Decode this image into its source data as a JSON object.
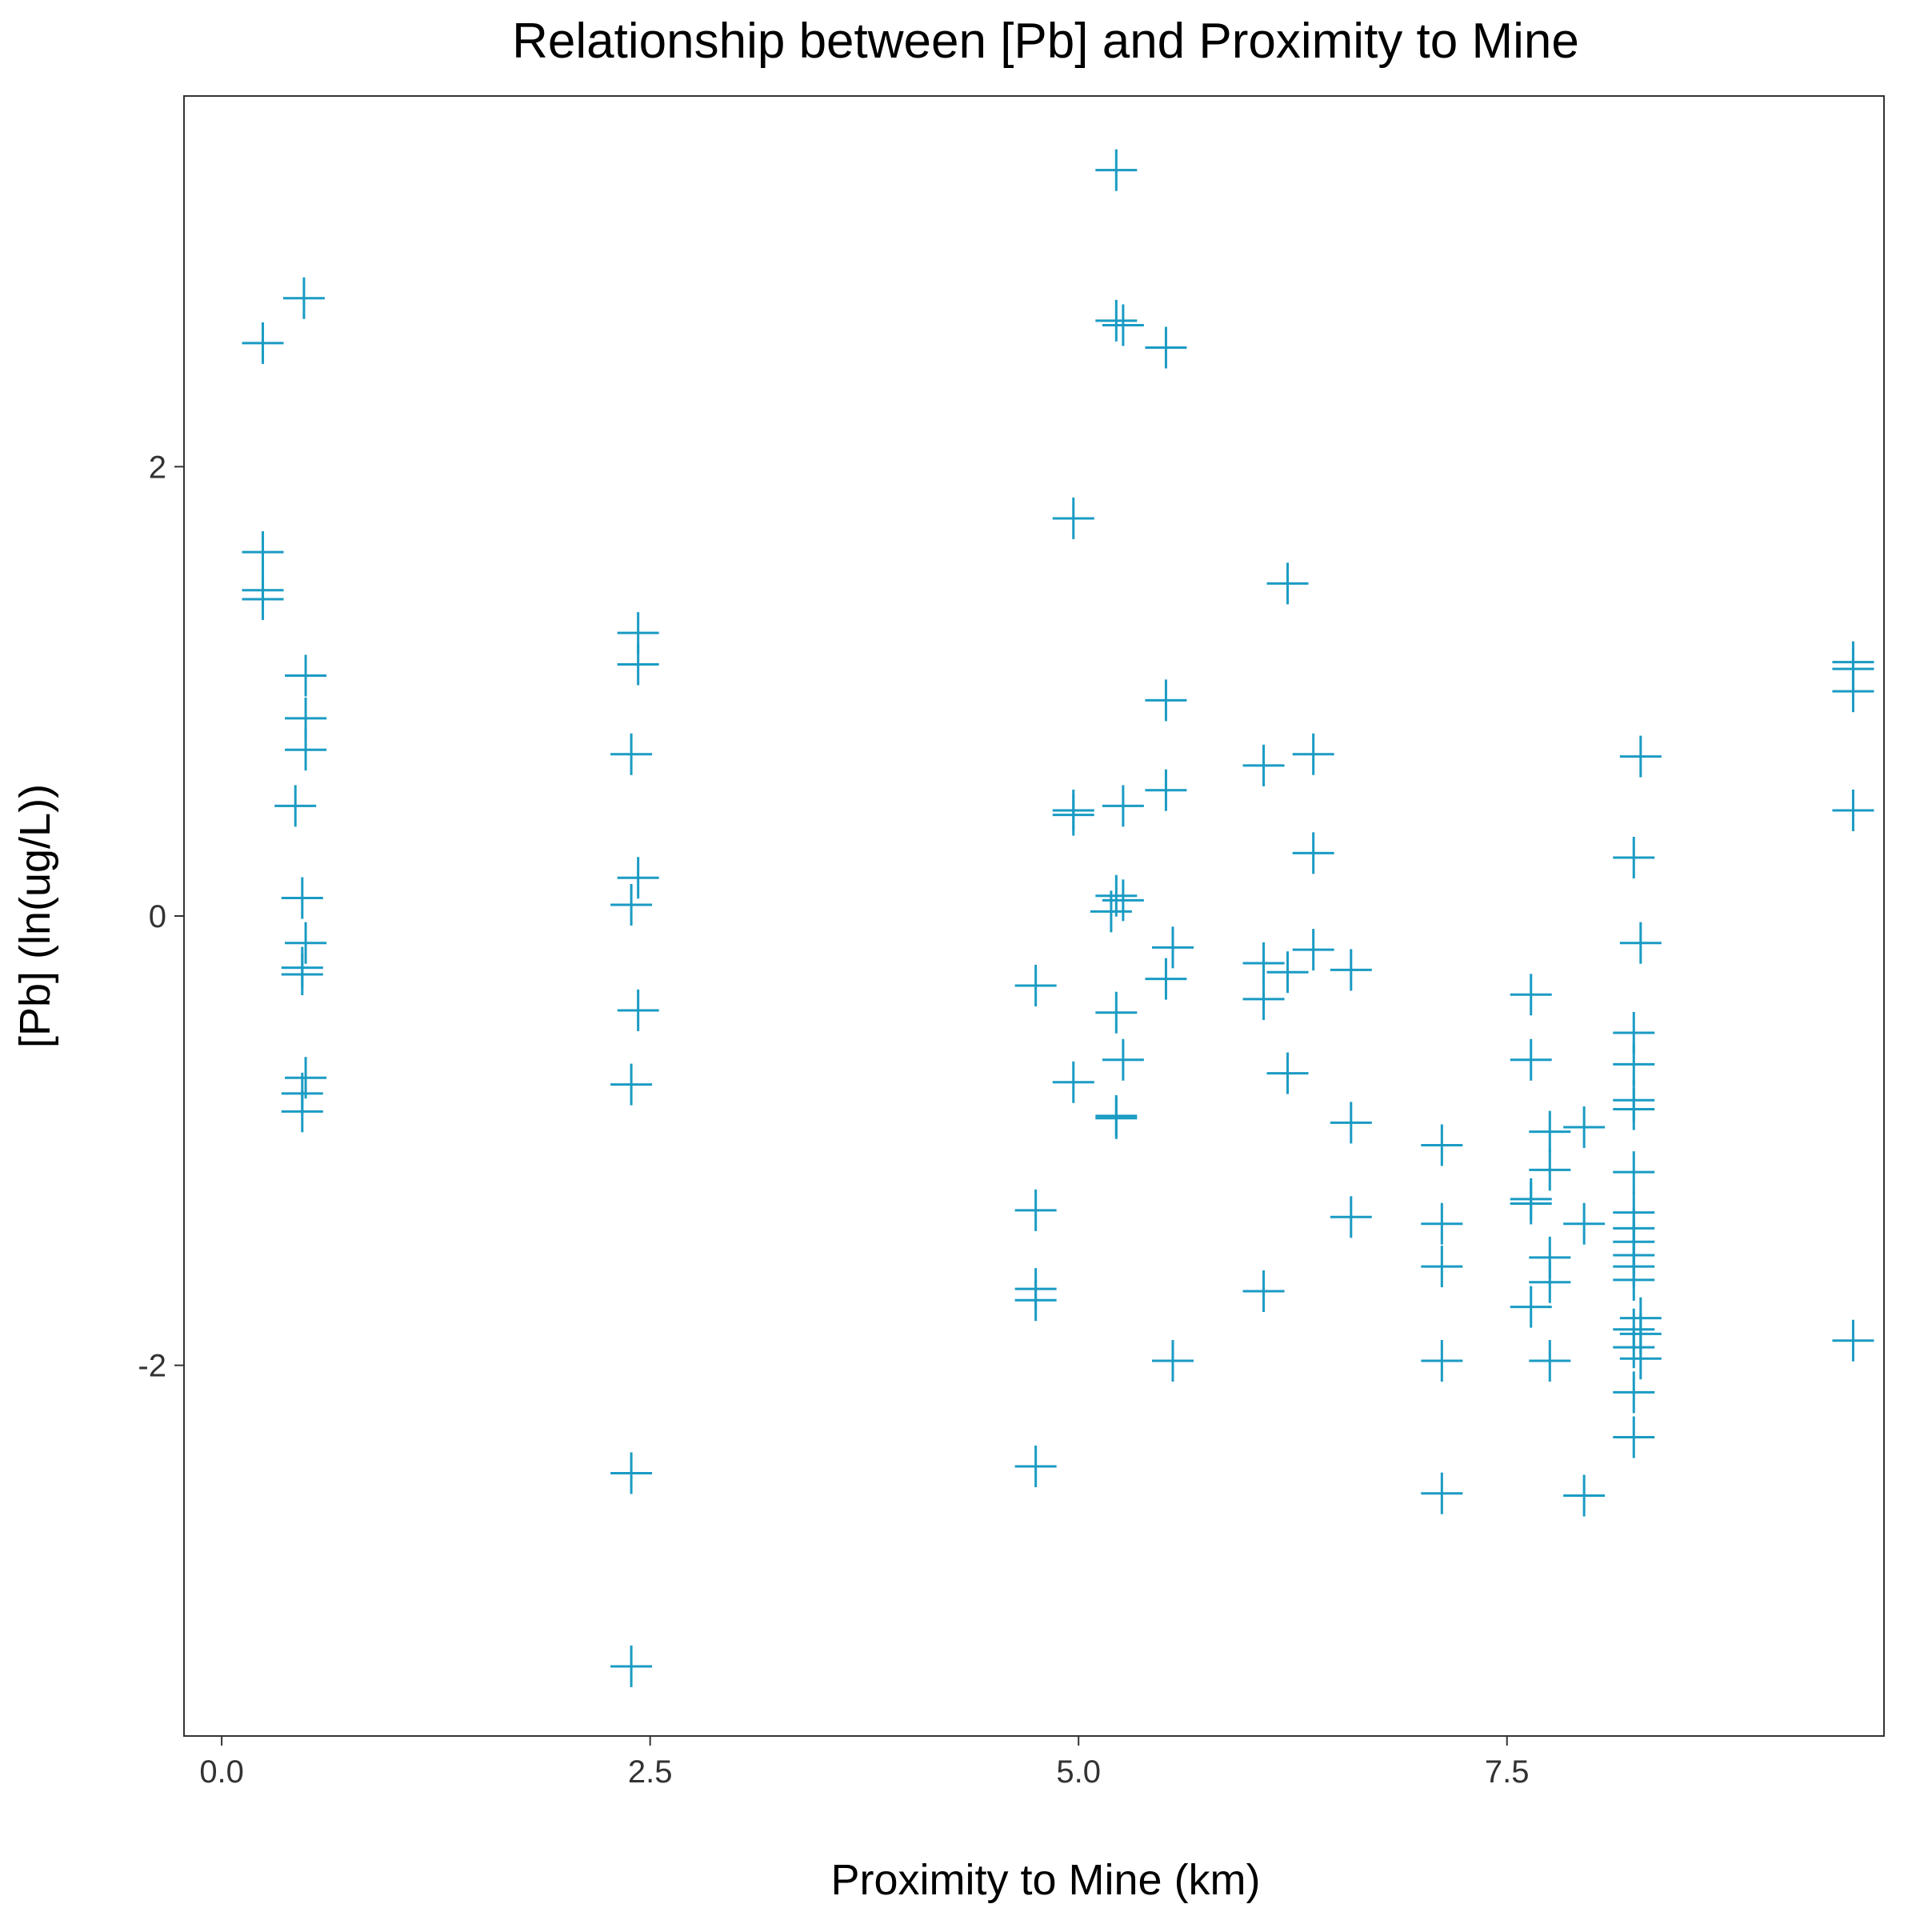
{
  "chart_data": {
    "type": "scatter",
    "title": "Relationship between [Pb] and Proximity to Mine",
    "xlabel": "Proximity to Mine (km)",
    "ylabel": "[Pb] (ln(ug/L))",
    "xlim": [
      -0.22,
      9.7
    ],
    "ylim": [
      -3.65,
      3.65
    ],
    "xticks": [
      0,
      2.5,
      5,
      7.5
    ],
    "xtick_labels": [
      "0.0",
      "2.5",
      "5.0",
      "7.5"
    ],
    "yticks": [
      -2,
      0,
      2
    ],
    "ytick_labels": [
      "-2",
      "0",
      "2"
    ],
    "marker": "plus",
    "color": "#1a9bc4",
    "grid": false,
    "legend": "none",
    "points": [
      {
        "x": 0.24,
        "y": 2.55
      },
      {
        "x": 0.48,
        "y": 2.75
      },
      {
        "x": 0.24,
        "y": 1.62
      },
      {
        "x": 0.24,
        "y": 1.45
      },
      {
        "x": 0.24,
        "y": 1.41
      },
      {
        "x": 0.49,
        "y": 1.07
      },
      {
        "x": 0.49,
        "y": 0.88
      },
      {
        "x": 0.49,
        "y": 0.74
      },
      {
        "x": 0.43,
        "y": 0.49
      },
      {
        "x": 0.47,
        "y": 0.08
      },
      {
        "x": 0.49,
        "y": -0.12
      },
      {
        "x": 0.47,
        "y": -0.23
      },
      {
        "x": 0.47,
        "y": -0.26
      },
      {
        "x": 0.49,
        "y": -0.72
      },
      {
        "x": 0.47,
        "y": -0.79
      },
      {
        "x": 0.47,
        "y": -0.87
      },
      {
        "x": 2.43,
        "y": 1.26
      },
      {
        "x": 2.43,
        "y": 1.12
      },
      {
        "x": 2.39,
        "y": 0.72
      },
      {
        "x": 2.43,
        "y": 0.17
      },
      {
        "x": 2.39,
        "y": 0.05
      },
      {
        "x": 2.43,
        "y": -0.42
      },
      {
        "x": 2.39,
        "y": -0.75
      },
      {
        "x": 2.39,
        "y": -2.48
      },
      {
        "x": 2.39,
        "y": -3.34
      },
      {
        "x": 5.22,
        "y": 3.32
      },
      {
        "x": 5.22,
        "y": 2.65
      },
      {
        "x": 5.26,
        "y": 2.63
      },
      {
        "x": 5.51,
        "y": 2.53
      },
      {
        "x": 4.97,
        "y": 1.77
      },
      {
        "x": 5.51,
        "y": 0.96
      },
      {
        "x": 5.51,
        "y": 0.56
      },
      {
        "x": 4.97,
        "y": 0.47
      },
      {
        "x": 4.97,
        "y": 0.45
      },
      {
        "x": 5.26,
        "y": 0.49
      },
      {
        "x": 5.22,
        "y": 0.09
      },
      {
        "x": 5.26,
        "y": 0.07
      },
      {
        "x": 5.19,
        "y": 0.02
      },
      {
        "x": 5.55,
        "y": -0.14
      },
      {
        "x": 5.51,
        "y": -0.28
      },
      {
        "x": 4.75,
        "y": -0.31
      },
      {
        "x": 5.22,
        "y": -0.43
      },
      {
        "x": 5.26,
        "y": -0.64
      },
      {
        "x": 4.97,
        "y": -0.74
      },
      {
        "x": 5.22,
        "y": -0.89
      },
      {
        "x": 5.22,
        "y": -0.9
      },
      {
        "x": 4.75,
        "y": -1.31
      },
      {
        "x": 4.75,
        "y": -1.66
      },
      {
        "x": 4.75,
        "y": -1.71
      },
      {
        "x": 5.55,
        "y": -1.98
      },
      {
        "x": 4.75,
        "y": -2.45
      },
      {
        "x": 6.22,
        "y": 1.48
      },
      {
        "x": 6.08,
        "y": 0.67
      },
      {
        "x": 6.37,
        "y": 0.72
      },
      {
        "x": 6.37,
        "y": 0.28
      },
      {
        "x": 6.37,
        "y": -0.15
      },
      {
        "x": 6.08,
        "y": -0.21
      },
      {
        "x": 6.59,
        "y": -0.24
      },
      {
        "x": 6.22,
        "y": -0.25
      },
      {
        "x": 6.08,
        "y": -0.37
      },
      {
        "x": 6.22,
        "y": -0.7
      },
      {
        "x": 6.59,
        "y": -0.92
      },
      {
        "x": 6.59,
        "y": -1.34
      },
      {
        "x": 6.08,
        "y": -1.67
      },
      {
        "x": 7.12,
        "y": -1.02
      },
      {
        "x": 7.12,
        "y": -1.37
      },
      {
        "x": 7.12,
        "y": -1.56
      },
      {
        "x": 7.12,
        "y": -1.98
      },
      {
        "x": 7.12,
        "y": -2.57
      },
      {
        "x": 7.64,
        "y": -0.35
      },
      {
        "x": 7.64,
        "y": -0.64
      },
      {
        "x": 7.75,
        "y": -0.96
      },
      {
        "x": 7.75,
        "y": -1.13
      },
      {
        "x": 7.64,
        "y": -1.26
      },
      {
        "x": 7.64,
        "y": -1.28
      },
      {
        "x": 7.75,
        "y": -1.52
      },
      {
        "x": 7.75,
        "y": -1.63
      },
      {
        "x": 7.64,
        "y": -1.74
      },
      {
        "x": 7.75,
        "y": -1.98
      },
      {
        "x": 7.95,
        "y": -0.94
      },
      {
        "x": 7.95,
        "y": -1.37
      },
      {
        "x": 7.95,
        "y": -2.58
      },
      {
        "x": 8.28,
        "y": 0.71
      },
      {
        "x": 8.24,
        "y": 0.26
      },
      {
        "x": 8.28,
        "y": -0.12
      },
      {
        "x": 8.24,
        "y": -0.52
      },
      {
        "x": 8.24,
        "y": -0.66
      },
      {
        "x": 8.24,
        "y": -0.82
      },
      {
        "x": 8.24,
        "y": -0.86
      },
      {
        "x": 8.24,
        "y": -1.14
      },
      {
        "x": 8.24,
        "y": -1.32
      },
      {
        "x": 8.24,
        "y": -1.39
      },
      {
        "x": 8.24,
        "y": -1.45
      },
      {
        "x": 8.24,
        "y": -1.51
      },
      {
        "x": 8.24,
        "y": -1.56
      },
      {
        "x": 8.24,
        "y": -1.62
      },
      {
        "x": 8.28,
        "y": -1.79
      },
      {
        "x": 8.24,
        "y": -1.84
      },
      {
        "x": 8.28,
        "y": -1.86
      },
      {
        "x": 8.24,
        "y": -1.92
      },
      {
        "x": 8.28,
        "y": -1.97
      },
      {
        "x": 8.24,
        "y": -2.12
      },
      {
        "x": 8.24,
        "y": -2.32
      },
      {
        "x": 9.52,
        "y": 1.13
      },
      {
        "x": 9.52,
        "y": 1.1
      },
      {
        "x": 9.52,
        "y": 1.0
      },
      {
        "x": 9.52,
        "y": 0.47
      },
      {
        "x": 9.52,
        "y": -1.89
      }
    ]
  }
}
